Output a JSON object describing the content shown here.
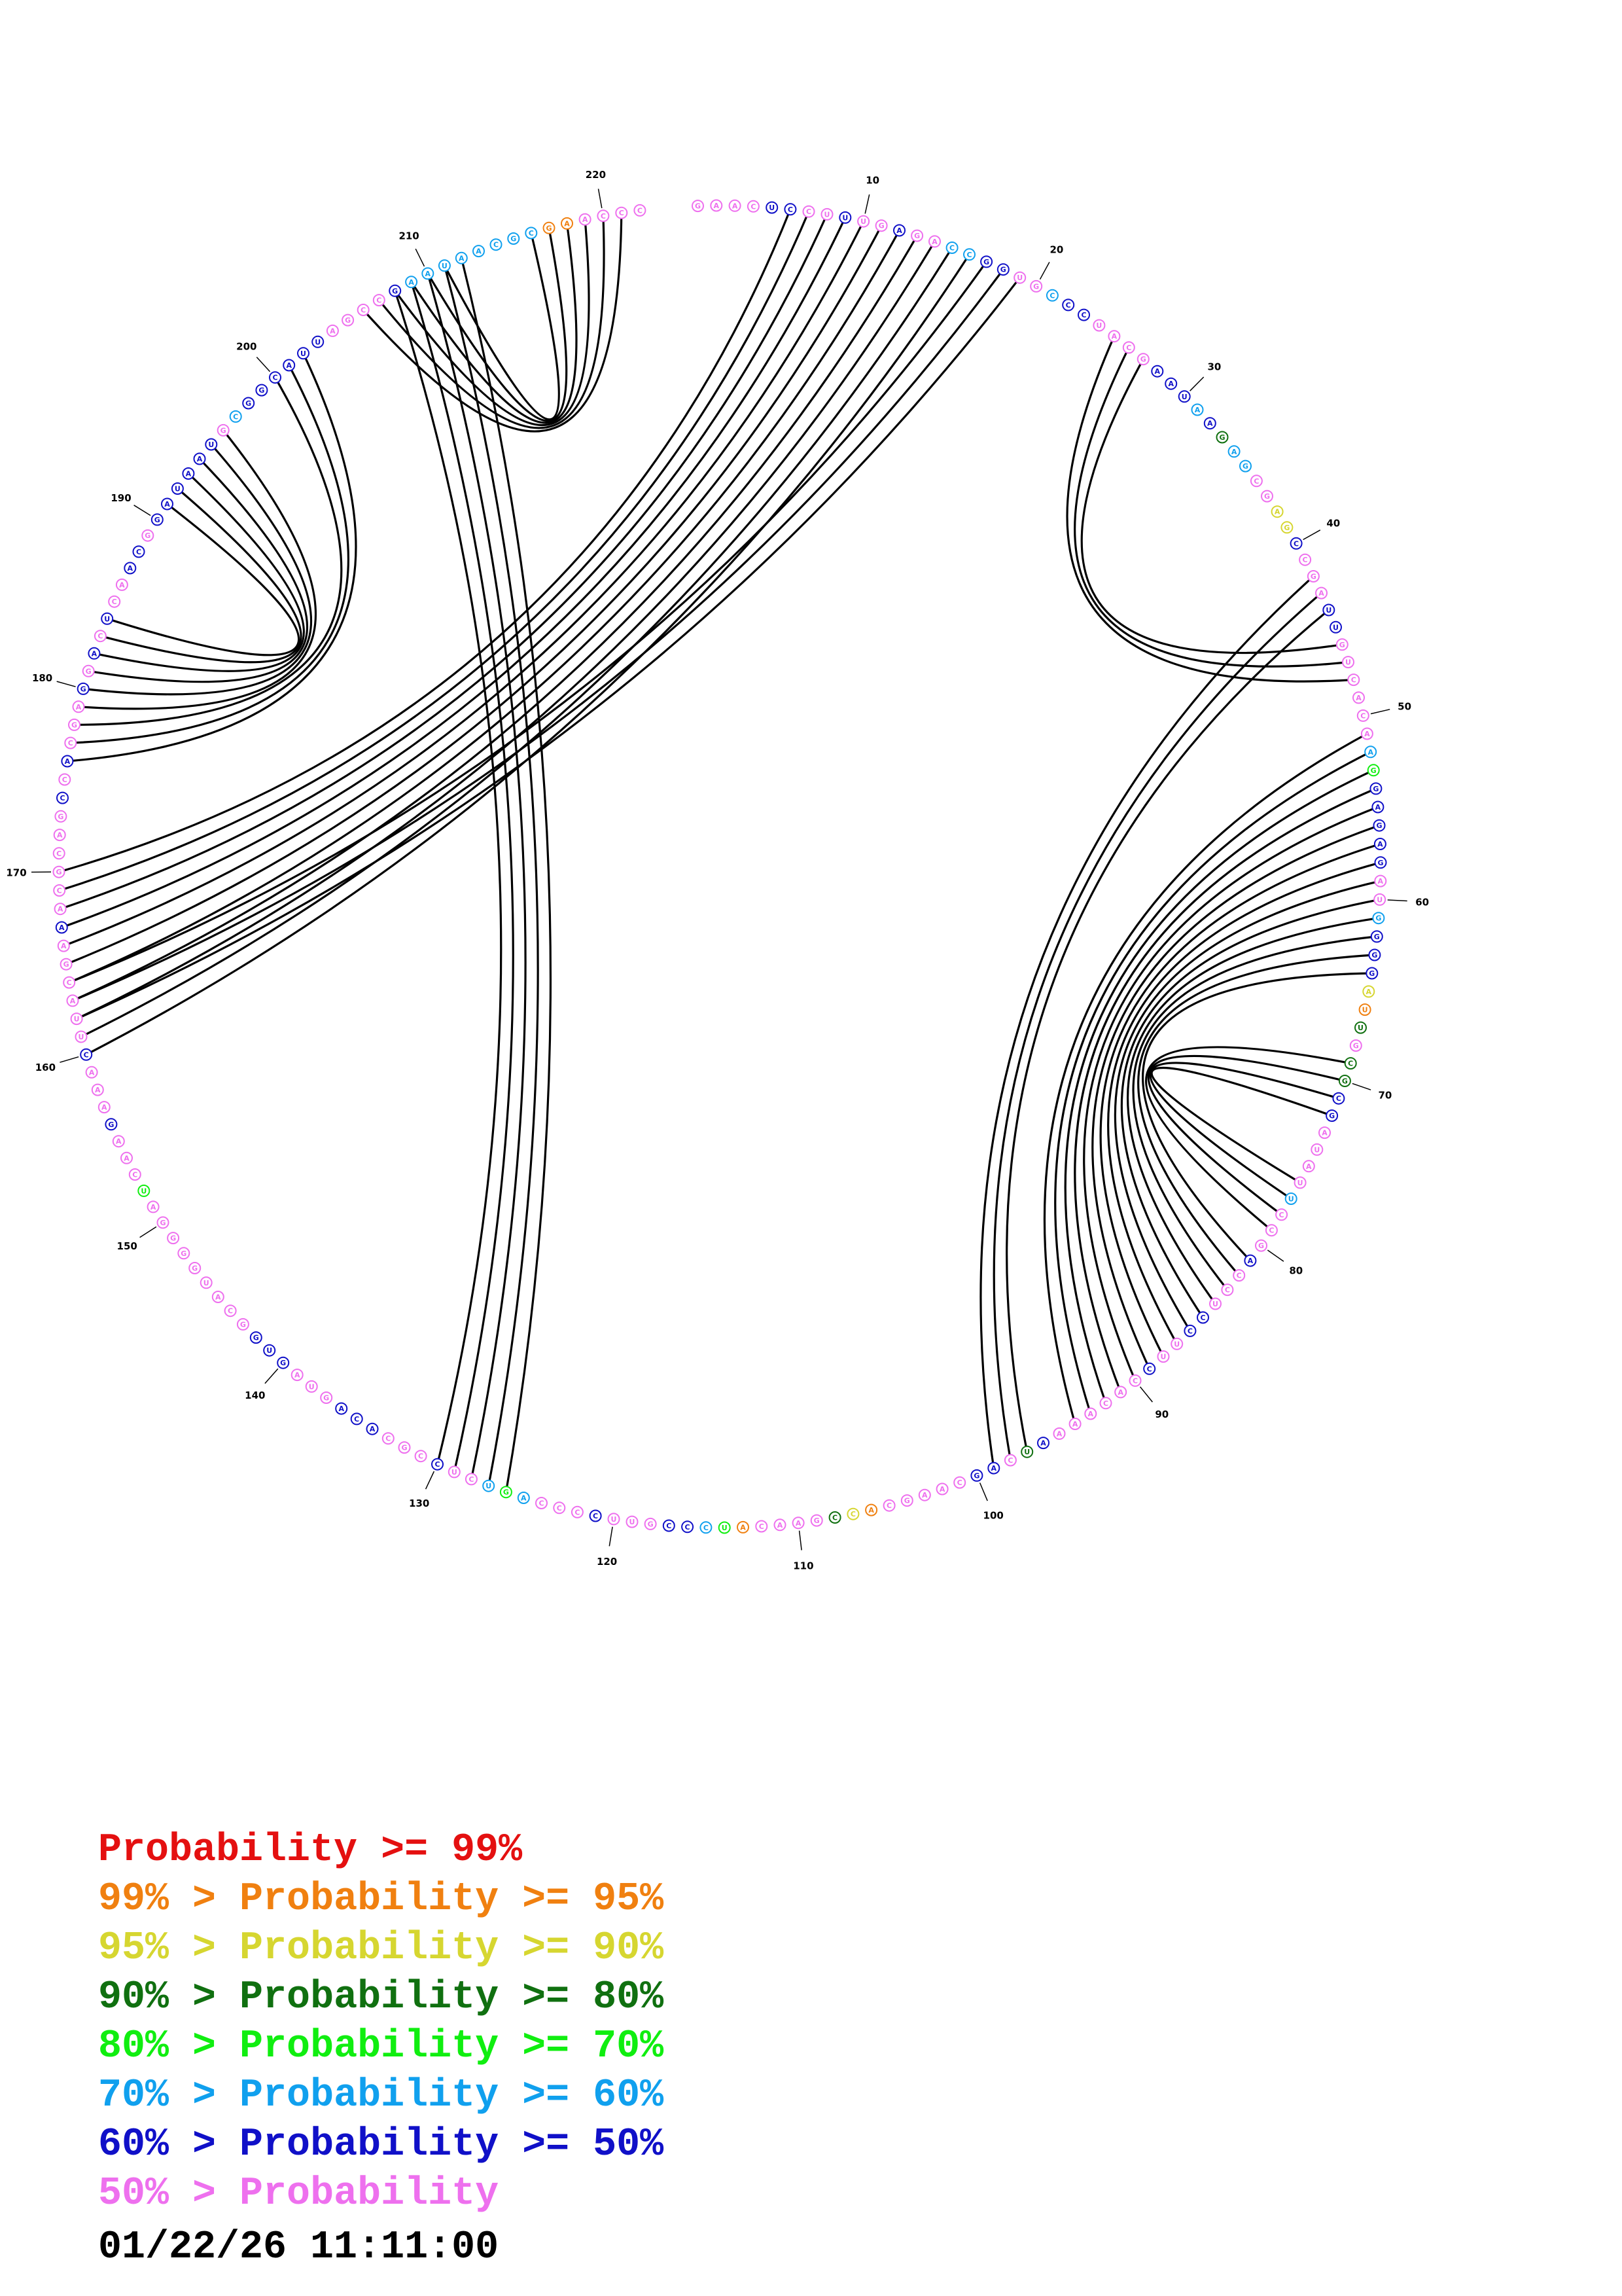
{
  "diagram": {
    "length": 222,
    "sequence": "GAACUCCUUUGAGACCGGUGCCCUACGAAUAAGAGCGAGCCGAUUGUCACAAGGAGAGAUGGGGAUUGCGCGAUAUUCCGACCUCCUUCCACAAAAUCAGCAAGCACCGAACAUCCCGUUCCCCAGUCUCCGCACAGUAGUGGCAUGGGGAUCAAGAAACUUACGAAACGCAGCCACGAGGACUCAACGGAUAAUGCGGCAUUAGCCGAAUAACGCGAACCC",
    "probability_colors": [
      "#e41010",
      "#f08010",
      "#d6d630",
      "#107010",
      "#10ee10",
      "#10a0ee",
      "#1010c8",
      "#ee70ee"
    ],
    "base_classes": "77776677677677556677566777766656355772267776677777754666667756662137336677775777677766776777777637667777712377771456677767775457767776667776667777777774777677767777776777777676777676767766766666675666666777765555555511",
    "position_labels": [
      "10",
      "20",
      "30",
      "40",
      "50",
      "60",
      "70",
      "80",
      "90",
      "100",
      "110",
      "120",
      "130",
      "140",
      "150",
      "160",
      "170",
      "180",
      "190",
      "200",
      "210",
      "220"
    ],
    "helices": [
      {
        "i": 6,
        "j": 170,
        "n": 11
      },
      {
        "i": 17,
        "j": 164,
        "n": 3
      },
      {
        "i": 25,
        "j": 48,
        "n": 3
      },
      {
        "i": 42,
        "j": 99,
        "n": 3
      },
      {
        "i": 51,
        "j": 94,
        "n": 14
      },
      {
        "i": 69,
        "j": 79,
        "n": 4
      },
      {
        "i": 126,
        "j": 212,
        "n": 5
      },
      {
        "i": 176,
        "j": 202,
        "n": 3
      },
      {
        "i": 179,
        "j": 196,
        "n": 6
      },
      {
        "i": 206,
        "j": 221,
        "n": 6
      }
    ]
  },
  "legend": {
    "rows": [
      {
        "prefix": "",
        "mid": "Probability",
        "suffix": ">= 99%",
        "color": "#e41010"
      },
      {
        "prefix": "99% > ",
        "mid": "Probability",
        "suffix": ">= 95%",
        "color": "#f08010"
      },
      {
        "prefix": "95% > ",
        "mid": "Probability",
        "suffix": ">= 90%",
        "color": "#d6d630"
      },
      {
        "prefix": "90% > ",
        "mid": "Probability",
        "suffix": ">= 80%",
        "color": "#107010"
      },
      {
        "prefix": "80% > ",
        "mid": "Probability",
        "suffix": ">= 70%",
        "color": "#10ee10"
      },
      {
        "prefix": "70% > ",
        "mid": "Probability",
        "suffix": ">= 60%",
        "color": "#10a0ee"
      },
      {
        "prefix": "60% > ",
        "mid": "Probability",
        "suffix": ">= 50%",
        "color": "#1010c8"
      },
      {
        "prefix": "50% > ",
        "mid": "Probability",
        "suffix": "",
        "color": "#ee70ee"
      }
    ],
    "timestamp": "01/22/26 11:11:00"
  }
}
